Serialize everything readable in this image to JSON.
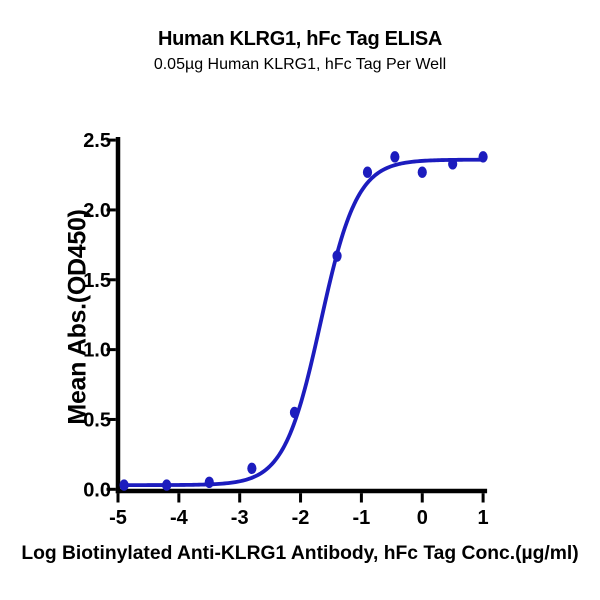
{
  "chart_data": {
    "type": "scatter",
    "title": "Human KLRG1, hFc Tag ELISA",
    "subtitle": "0.05µg Human KLRG1, hFc Tag Per Well",
    "xlabel": "Log Biotinylated Anti-KLRG1 Antibody, hFc Tag Conc.(µg/ml)",
    "ylabel": "Mean Abs.(OD450)",
    "xlim": [
      -5,
      1
    ],
    "ylim": [
      0,
      2.5
    ],
    "x_ticks": [
      "-5",
      "-4",
      "-3",
      "-2",
      "-1",
      "0",
      "1"
    ],
    "y_ticks": [
      "0.0",
      "0.5",
      "1.0",
      "1.5",
      "2.0",
      "2.5"
    ],
    "grid": false,
    "legend": null,
    "marker_color": "#1c1cbe",
    "curve_color": "#1c1cbe",
    "axis_color": "#000000",
    "points": [
      {
        "x": -4.9,
        "y": 0.03
      },
      {
        "x": -4.2,
        "y": 0.03
      },
      {
        "x": -3.5,
        "y": 0.05
      },
      {
        "x": -2.8,
        "y": 0.15
      },
      {
        "x": -2.1,
        "y": 0.55
      },
      {
        "x": -1.4,
        "y": 1.67
      },
      {
        "x": -0.9,
        "y": 2.27
      },
      {
        "x": -0.45,
        "y": 2.38
      },
      {
        "x": 0.0,
        "y": 2.27
      },
      {
        "x": 0.5,
        "y": 2.33
      },
      {
        "x": 1.0,
        "y": 2.38
      }
    ],
    "fit_curve": {
      "model": "4PL sigmoid",
      "bottom": 0.03,
      "top": 2.36,
      "logec50": -1.67,
      "hillslope": 1.45,
      "x_start": -4.9,
      "x_end": 1.0
    }
  }
}
